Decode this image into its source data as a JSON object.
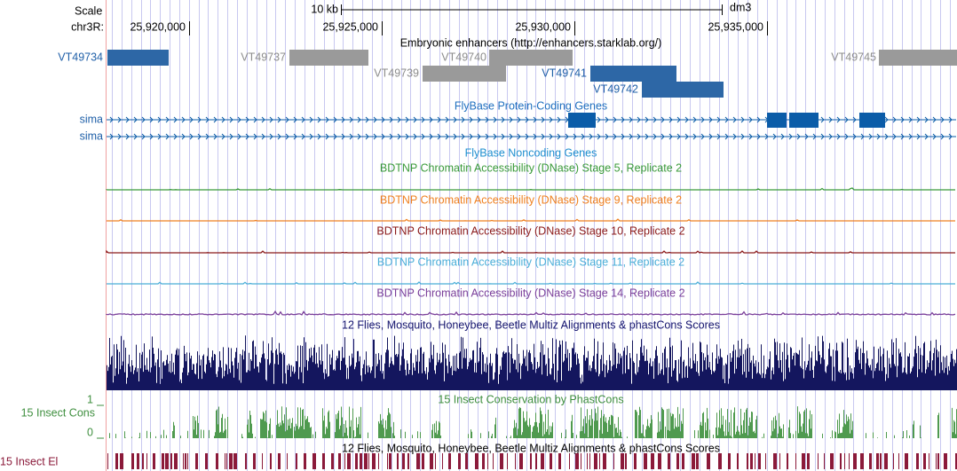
{
  "ruler": {
    "scale_label": "Scale",
    "scale_size": "10 kb",
    "assembly": "dm3",
    "chrom": "chr3R:",
    "positions": [
      "25,920,000",
      "25,925,000",
      "25,930,000",
      "25,935,000"
    ]
  },
  "tracks": {
    "enhancers": {
      "title": "Embryonic enhancers (http://enhancers.starklab.org/)",
      "items": [
        "VT49734",
        "VT49737",
        "VT49740",
        "VT49745",
        "VT49739",
        "VT49741",
        "VT49742"
      ]
    },
    "protein_coding": {
      "title": "FlyBase Protein-Coding Genes",
      "genes": [
        "sima",
        "sima"
      ]
    },
    "noncoding": {
      "title": "FlyBase Noncoding Genes"
    },
    "dnase": [
      "BDTNP Chromatin Accessibility (DNase) Stage 5, Replicate 2",
      "BDTNP Chromatin Accessibility (DNase) Stage 9, Replicate 2",
      "BDTNP Chromatin Accessibility (DNase) Stage 10, Replicate 2",
      "BDTNP Chromatin Accessibility (DNase) Stage 11, Replicate 2",
      "BDTNP Chromatin Accessibility (DNase) Stage 14, Replicate 2"
    ],
    "multiz": {
      "title": "12 Flies, Mosquito, Honeybee, Beetle Multiz Alignments & phastCons Scores"
    },
    "phastcons": {
      "title": "15 Insect Conservation by PhastCons",
      "label": "15 Insect Cons",
      "axis_max": "1",
      "axis_min": "0"
    },
    "elements": {
      "title": "12 Flies, Mosquito, Honeybee, Beetle Multiz Alignments & phastCons Scores",
      "label": "15 Insect El"
    }
  }
}
